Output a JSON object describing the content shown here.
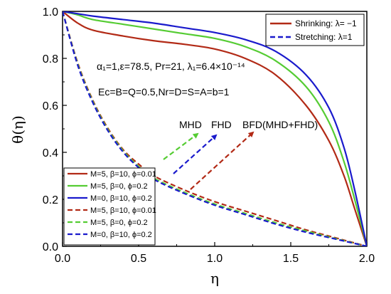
{
  "chart_data": {
    "type": "line",
    "xlabel": "η",
    "ylabel": "θ(η)",
    "xlim": [
      0.0,
      2.0
    ],
    "ylim": [
      0.0,
      1.0
    ],
    "xticks": [
      "0.0",
      "0.5",
      "1.0",
      "1.5",
      "2.0"
    ],
    "yticks": [
      "0.0",
      "0.2",
      "0.4",
      "0.6",
      "0.8",
      "1.0"
    ],
    "colors": {
      "red": "#b22a16",
      "green": "#55cc33",
      "blue": "#1a1acc"
    },
    "series": [
      {
        "name": "M=5, β=10, ϕ=0.01",
        "color": "#b22a16",
        "dash": false,
        "x": [
          0,
          0.1,
          0.2,
          0.4,
          0.6,
          0.8,
          1.0,
          1.2,
          1.4,
          1.6,
          1.75,
          1.85,
          1.92,
          2.0
        ],
        "y": [
          1.0,
          0.95,
          0.92,
          0.895,
          0.875,
          0.86,
          0.84,
          0.8,
          0.73,
          0.6,
          0.45,
          0.3,
          0.16,
          0.0
        ]
      },
      {
        "name": "M=5, β=0, ϕ=0.2",
        "color": "#55cc33",
        "dash": false,
        "x": [
          0,
          0.1,
          0.2,
          0.4,
          0.6,
          0.8,
          1.0,
          1.2,
          1.4,
          1.6,
          1.75,
          1.85,
          1.92,
          2.0
        ],
        "y": [
          1.0,
          0.985,
          0.965,
          0.945,
          0.925,
          0.905,
          0.885,
          0.85,
          0.79,
          0.68,
          0.53,
          0.36,
          0.2,
          0.0
        ]
      },
      {
        "name": "M=0, β=10, ϕ=0.2",
        "color": "#1a1acc",
        "dash": false,
        "x": [
          0,
          0.1,
          0.2,
          0.4,
          0.6,
          0.8,
          1.0,
          1.2,
          1.4,
          1.6,
          1.75,
          1.85,
          1.92,
          2.0
        ],
        "y": [
          1.0,
          0.99,
          0.98,
          0.965,
          0.95,
          0.93,
          0.91,
          0.88,
          0.83,
          0.73,
          0.59,
          0.42,
          0.24,
          0.0
        ]
      },
      {
        "name": "M=5, β=10, ϕ=0.01",
        "color": "#b22a16",
        "dash": true,
        "x": [
          0,
          0.1,
          0.2,
          0.3,
          0.4,
          0.5,
          0.6,
          0.8,
          1.0,
          1.2,
          1.4,
          1.6,
          1.8,
          2.0
        ],
        "y": [
          1.0,
          0.78,
          0.62,
          0.5,
          0.41,
          0.35,
          0.3,
          0.24,
          0.19,
          0.15,
          0.11,
          0.07,
          0.035,
          0.0
        ]
      },
      {
        "name": "M=5, β=0, ϕ=0.2",
        "color": "#55cc33",
        "dash": true,
        "x": [
          0,
          0.1,
          0.2,
          0.3,
          0.4,
          0.5,
          0.6,
          0.8,
          1.0,
          1.2,
          1.4,
          1.6,
          1.8,
          2.0
        ],
        "y": [
          1.0,
          0.775,
          0.615,
          0.495,
          0.405,
          0.34,
          0.29,
          0.23,
          0.18,
          0.14,
          0.1,
          0.065,
          0.032,
          0.0
        ]
      },
      {
        "name": "M=0, β=10, ϕ=0.2",
        "color": "#1a1acc",
        "dash": true,
        "x": [
          0,
          0.1,
          0.2,
          0.3,
          0.4,
          0.5,
          0.6,
          0.8,
          1.0,
          1.2,
          1.4,
          1.6,
          1.8,
          2.0
        ],
        "y": [
          1.0,
          0.77,
          0.61,
          0.49,
          0.4,
          0.335,
          0.285,
          0.225,
          0.175,
          0.135,
          0.095,
          0.06,
          0.03,
          0.0
        ]
      }
    ],
    "style_legend": {
      "placement": "top-right",
      "items": [
        {
          "label": "Shrinking: λ= −1",
          "color": "#b22a16",
          "dash": false
        },
        {
          "label": "Stretching: λ=1",
          "color": "#1a1acc",
          "dash": true
        }
      ]
    },
    "series_legend_placement": "bottom-left",
    "annotations": {
      "params_line1": "α₁=1,ε=78.5, Pr=21, λ₁=6.4×10⁻¹⁴",
      "params_line2": "Ec=B=Q=0.5,Nr=D=S=A=b=1",
      "arrow_labels": [
        {
          "text": "MHD",
          "color": "#55cc33"
        },
        {
          "text": "FHD",
          "color": "#1a1acc"
        },
        {
          "text": "BFD(MHD+FHD)",
          "color": "#b22a16"
        }
      ]
    }
  }
}
